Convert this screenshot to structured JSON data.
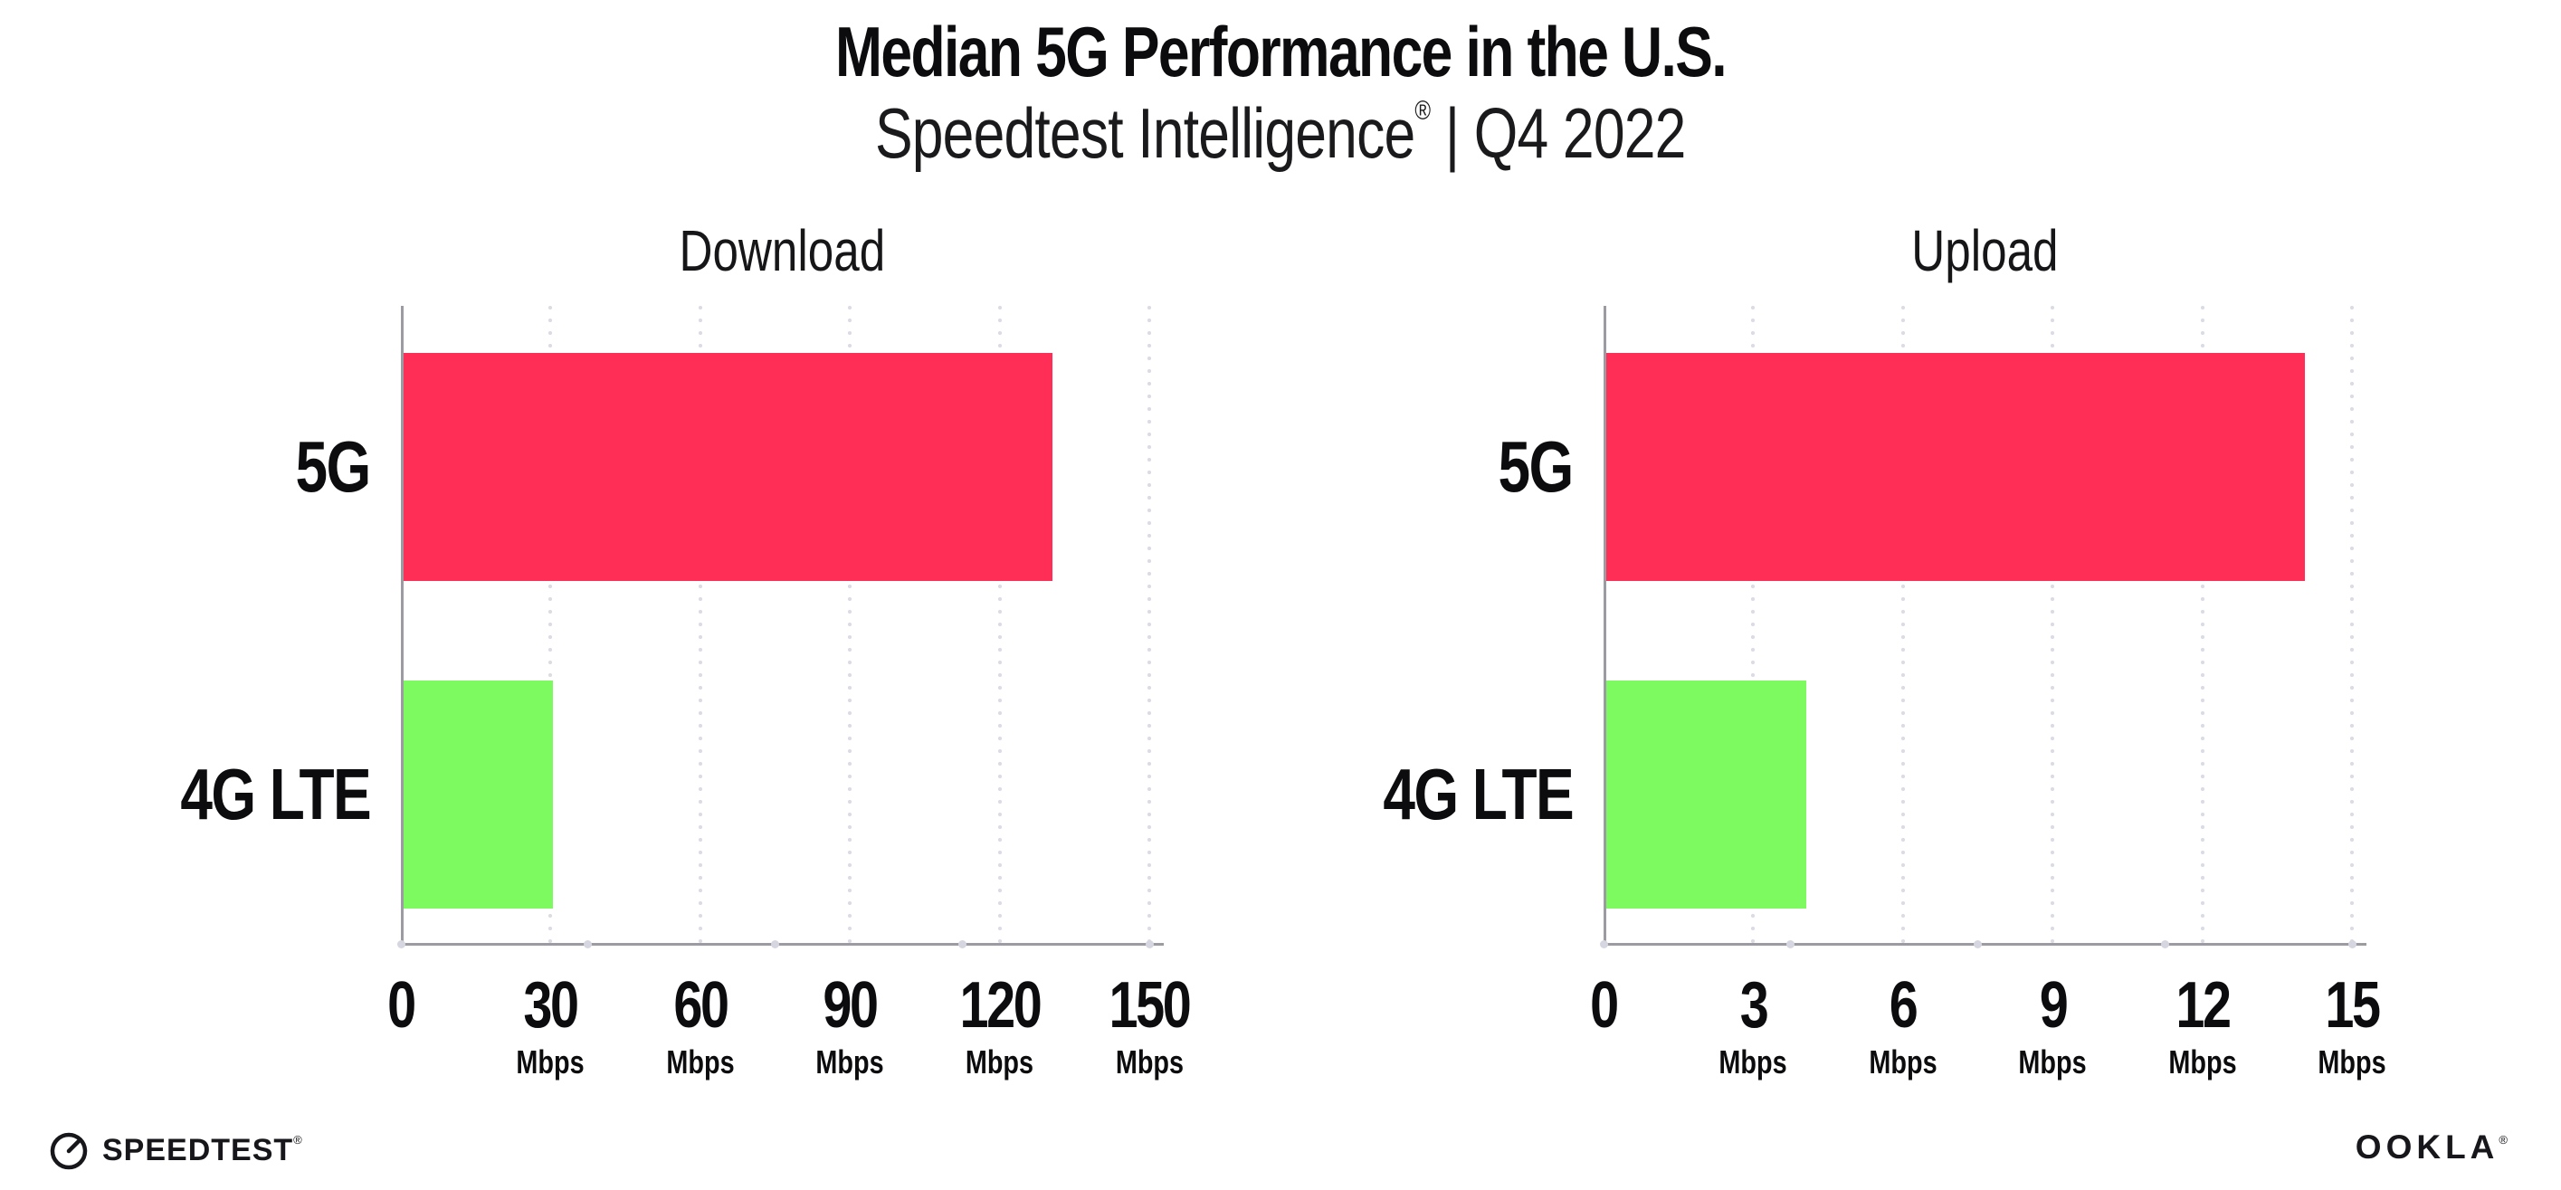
{
  "header": {
    "title": "Median 5G Performance in the U.S.",
    "subtitle_product": "Speedtest Intelligence",
    "subtitle_reg": "®",
    "subtitle_rest": " | Q4 2022"
  },
  "chart_data": [
    {
      "type": "bar",
      "orientation": "horizontal",
      "title": "Download",
      "categories": [
        "5G",
        "4G LTE"
      ],
      "values": [
        130,
        30
      ],
      "unit": "Mbps",
      "xlim": [
        0,
        150
      ],
      "xticks": [
        0,
        30,
        60,
        90,
        120,
        150
      ],
      "bar_colors": [
        "#FF2E56",
        "#7EFA61"
      ],
      "grid": "dotted-vertical",
      "legend": "none"
    },
    {
      "type": "bar",
      "orientation": "horizontal",
      "title": "Upload",
      "categories": [
        "5G",
        "4G LTE"
      ],
      "values": [
        14,
        4
      ],
      "unit": "Mbps",
      "xlim": [
        0,
        15
      ],
      "xticks": [
        0,
        3,
        6,
        9,
        12,
        15
      ],
      "bar_colors": [
        "#FF2E56",
        "#7EFA61"
      ],
      "grid": "dotted-vertical",
      "legend": "none"
    }
  ],
  "footer": {
    "speedtest": "SPEEDTEST",
    "speedtest_reg": "®",
    "ookla": "OOKLA",
    "ookla_reg": "®"
  },
  "colors": {
    "bar_5g": "#FF2E56",
    "bar_4g_lte": "#7EFA61",
    "axis": "#9B9BA1",
    "grid_dot": "#DCDCE6",
    "text": "#0C0C0E"
  }
}
